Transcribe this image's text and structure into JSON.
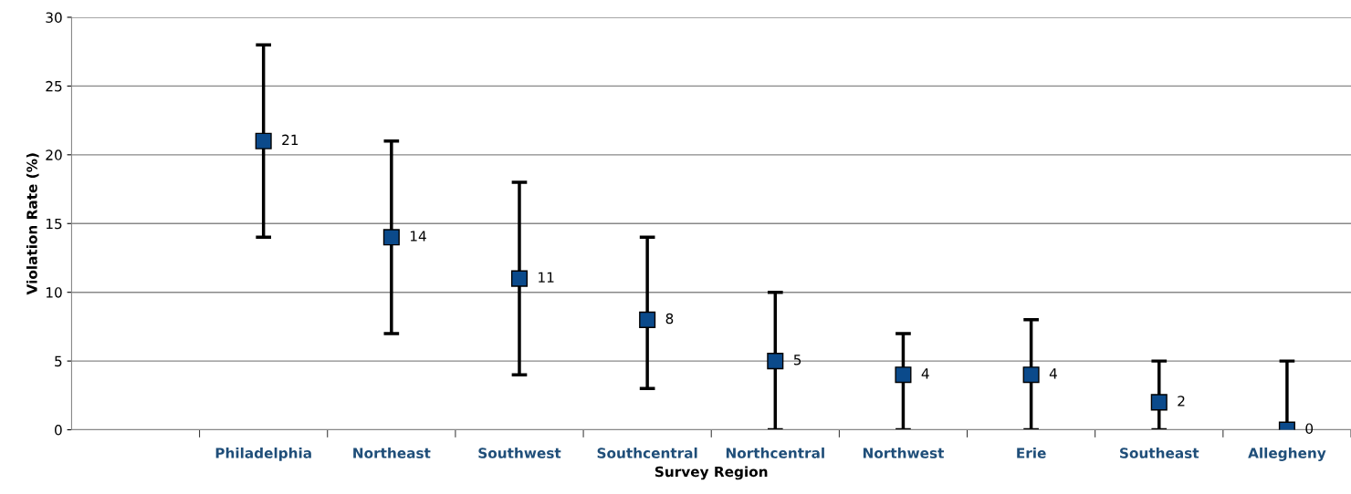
{
  "chart_data": {
    "type": "scatter",
    "xlabel": "Survey Region",
    "ylabel": "Violation Rate (%)",
    "categories": [
      null,
      "Philadelphia",
      "Northeast",
      "Southwest",
      "Southcentral",
      "Northcentral",
      "Northwest",
      "Erie",
      "Southeast",
      "Allegheny"
    ],
    "series": [
      {
        "color": "#0b4a8b",
        "values": [
          null,
          21,
          14,
          11,
          8,
          5,
          4,
          4,
          2,
          0
        ],
        "errors": [
          null,
          [
            14,
            28
          ],
          [
            7,
            21
          ],
          [
            4,
            18
          ],
          [
            3,
            14
          ],
          [
            0,
            10
          ],
          [
            0,
            7
          ],
          [
            0,
            8
          ],
          [
            0,
            5
          ],
          [
            0,
            5
          ]
        ]
      }
    ],
    "data_labels": true,
    "ylim": [
      0,
      30
    ],
    "yticks": [
      0,
      5,
      10,
      15,
      20,
      25,
      30
    ],
    "grid": "y",
    "marker": "square"
  }
}
